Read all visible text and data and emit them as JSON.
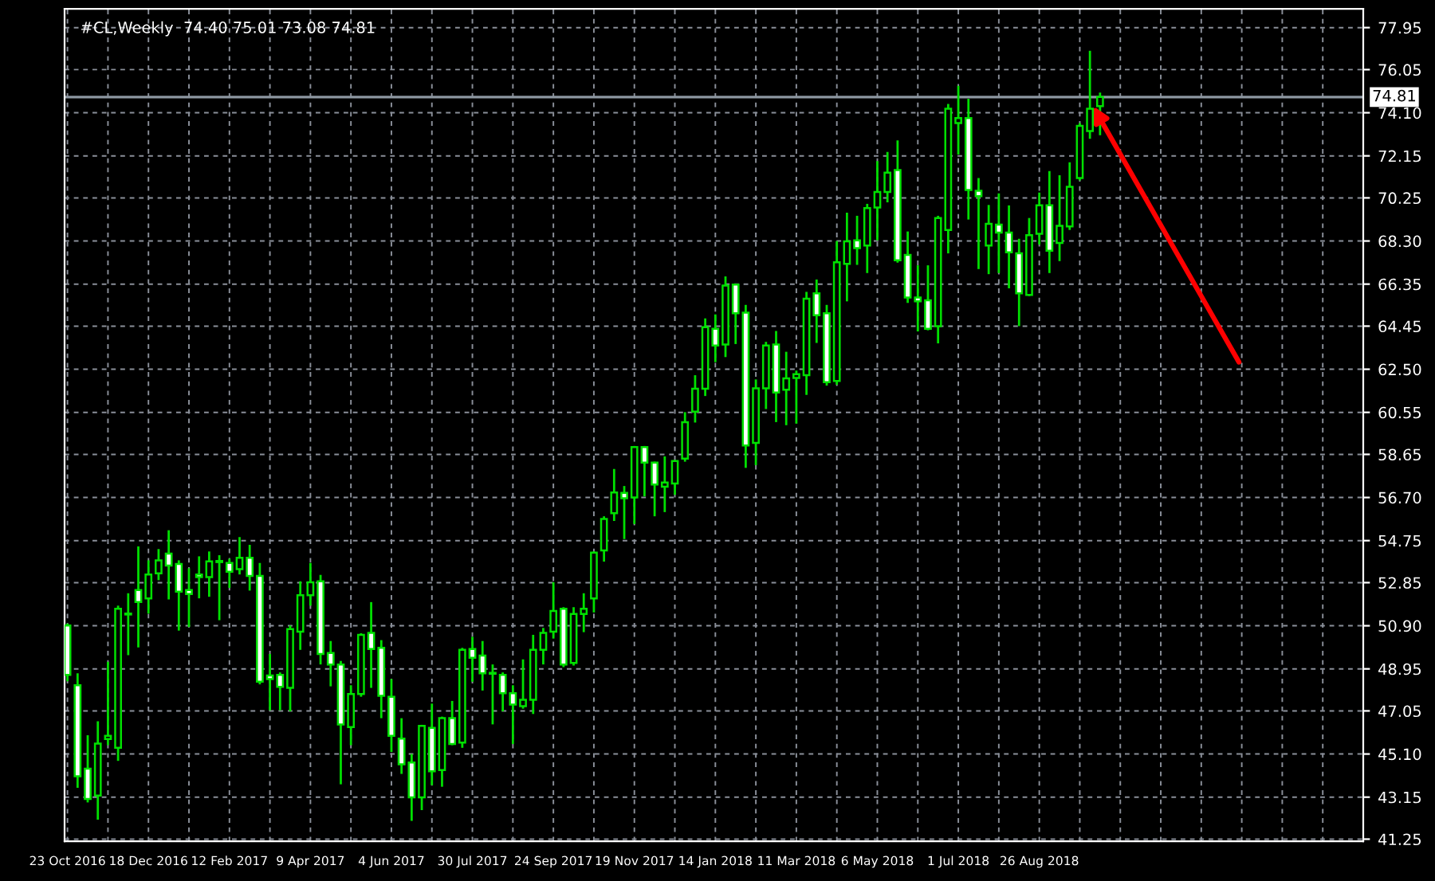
{
  "chart_data": {
    "type": "candlestick",
    "title": "#CL,Weekly  74.40 75.01 73.08 74.81",
    "x": [
      "2016-10-23",
      "2016-10-30",
      "2016-11-06",
      "2016-11-13",
      "2016-11-20",
      "2016-11-27",
      "2016-12-04",
      "2016-12-11",
      "2016-12-18",
      "2016-12-25",
      "2017-01-01",
      "2017-01-08",
      "2017-01-15",
      "2017-01-22",
      "2017-01-29",
      "2017-02-05",
      "2017-02-12",
      "2017-02-19",
      "2017-02-26",
      "2017-03-05",
      "2017-03-12",
      "2017-03-19",
      "2017-03-26",
      "2017-04-02",
      "2017-04-09",
      "2017-04-16",
      "2017-04-23",
      "2017-04-30",
      "2017-05-07",
      "2017-05-14",
      "2017-05-21",
      "2017-05-28",
      "2017-06-04",
      "2017-06-11",
      "2017-06-18",
      "2017-06-25",
      "2017-07-02",
      "2017-07-09",
      "2017-07-16",
      "2017-07-23",
      "2017-07-30",
      "2017-08-06",
      "2017-08-13",
      "2017-08-20",
      "2017-08-27",
      "2017-09-03",
      "2017-09-10",
      "2017-09-17",
      "2017-09-24",
      "2017-10-01",
      "2017-10-08",
      "2017-10-15",
      "2017-10-22",
      "2017-10-29",
      "2017-11-05",
      "2017-11-12",
      "2017-11-19",
      "2017-11-26",
      "2017-12-03",
      "2017-12-10",
      "2017-12-17",
      "2017-12-24",
      "2017-12-31",
      "2018-01-07",
      "2018-01-14",
      "2018-01-21",
      "2018-01-28",
      "2018-02-04",
      "2018-02-11",
      "2018-02-18",
      "2018-02-25",
      "2018-03-04",
      "2018-03-11",
      "2018-03-18",
      "2018-03-25",
      "2018-04-01",
      "2018-04-08",
      "2018-04-15",
      "2018-04-22",
      "2018-04-29",
      "2018-05-06",
      "2018-05-13",
      "2018-05-20",
      "2018-05-27",
      "2018-06-03",
      "2018-06-10",
      "2018-06-17",
      "2018-06-24",
      "2018-07-01",
      "2018-07-08",
      "2018-07-15",
      "2018-07-22",
      "2018-07-29",
      "2018-08-05",
      "2018-08-12",
      "2018-08-19",
      "2018-08-26",
      "2018-09-02",
      "2018-09-09",
      "2018-09-16",
      "2018-09-23",
      "2018-09-30",
      "2018-10-07"
    ],
    "ohlc": [
      [
        50.91,
        51.0,
        48.39,
        48.68
      ],
      [
        48.21,
        48.75,
        43.57,
        44.09
      ],
      [
        44.44,
        45.95,
        42.91,
        43.07
      ],
      [
        43.22,
        46.58,
        42.13,
        45.57
      ],
      [
        45.78,
        49.27,
        45.5,
        45.92
      ],
      [
        45.38,
        51.81,
        44.79,
        51.67
      ],
      [
        51.41,
        52.37,
        49.57,
        51.45
      ],
      [
        52.51,
        54.49,
        49.92,
        51.97
      ],
      [
        52.14,
        53.86,
        51.45,
        53.22
      ],
      [
        53.27,
        54.37,
        52.96,
        53.86
      ],
      [
        54.16,
        55.22,
        52.09,
        53.62
      ],
      [
        53.69,
        53.86,
        50.68,
        52.44
      ],
      [
        52.51,
        53.5,
        50.84,
        52.33
      ],
      [
        53.22,
        54.04,
        52.14,
        53.1
      ],
      [
        53.1,
        54.26,
        52.21,
        53.81
      ],
      [
        53.78,
        54.09,
        51.15,
        53.83
      ],
      [
        53.74,
        53.93,
        52.61,
        53.34
      ],
      [
        53.46,
        54.91,
        53.22,
        53.97
      ],
      [
        53.97,
        54.56,
        52.49,
        53.15
      ],
      [
        53.15,
        53.74,
        48.25,
        48.37
      ],
      [
        48.65,
        49.62,
        47.08,
        48.49
      ],
      [
        48.68,
        48.79,
        47.08,
        48.14
      ],
      [
        48.09,
        50.91,
        47.03,
        50.75
      ],
      [
        50.63,
        52.91,
        49.81,
        52.28
      ],
      [
        52.28,
        53.74,
        51.81,
        52.87
      ],
      [
        52.91,
        53.2,
        49.15,
        49.62
      ],
      [
        49.67,
        50.21,
        48.16,
        49.15
      ],
      [
        49.15,
        49.31,
        43.73,
        46.44
      ],
      [
        46.32,
        48.21,
        45.5,
        47.81
      ],
      [
        47.81,
        50.56,
        47.69,
        50.49
      ],
      [
        50.58,
        51.97,
        48.09,
        49.85
      ],
      [
        49.9,
        50.25,
        46.72,
        47.73
      ],
      [
        47.69,
        48.49,
        45.19,
        45.92
      ],
      [
        45.8,
        46.72,
        44.2,
        44.63
      ],
      [
        44.72,
        45.1,
        42.08,
        43.14
      ],
      [
        43.14,
        46.42,
        42.56,
        46.37
      ],
      [
        46.28,
        47.38,
        43.69,
        44.32
      ],
      [
        44.37,
        46.79,
        43.62,
        46.72
      ],
      [
        46.72,
        47.5,
        45.5,
        45.55
      ],
      [
        45.62,
        49.9,
        45.38,
        49.81
      ],
      [
        49.85,
        50.4,
        48.37,
        49.45
      ],
      [
        49.55,
        50.21,
        47.97,
        48.75
      ],
      [
        48.77,
        49.15,
        46.44,
        48.73
      ],
      [
        48.68,
        48.79,
        47.03,
        47.85
      ],
      [
        47.85,
        48.21,
        45.55,
        47.34
      ],
      [
        47.26,
        49.38,
        47.15,
        47.55
      ],
      [
        47.55,
        50.49,
        46.91,
        49.81
      ],
      [
        49.81,
        50.8,
        49.15,
        50.58
      ],
      [
        50.63,
        52.87,
        50.32,
        51.57
      ],
      [
        51.67,
        51.74,
        49.03,
        49.15
      ],
      [
        49.22,
        51.74,
        49.1,
        51.43
      ],
      [
        51.43,
        52.37,
        50.61,
        51.67
      ],
      [
        52.14,
        54.26,
        51.5,
        54.21
      ],
      [
        54.31,
        55.85,
        53.8,
        55.73
      ],
      [
        55.99,
        57.99,
        55.64,
        56.93
      ],
      [
        56.91,
        57.22,
        54.82,
        56.67
      ],
      [
        56.7,
        59.03,
        55.5,
        58.98
      ],
      [
        58.98,
        59.03,
        56.75,
        58.28
      ],
      [
        58.28,
        58.32,
        55.85,
        57.29
      ],
      [
        57.19,
        58.56,
        56.04,
        57.38
      ],
      [
        57.33,
        58.39,
        56.82,
        58.35
      ],
      [
        58.46,
        60.56,
        58.32,
        60.11
      ],
      [
        60.58,
        62.23,
        60.09,
        61.62
      ],
      [
        61.62,
        64.8,
        61.29,
        64.4
      ],
      [
        64.33,
        64.98,
        62.82,
        63.57
      ],
      [
        63.62,
        66.7,
        63.05,
        66.28
      ],
      [
        66.33,
        66.37,
        63.64,
        65.03
      ],
      [
        65.06,
        65.41,
        58.04,
        59.05
      ],
      [
        59.17,
        62.04,
        58.16,
        61.64
      ],
      [
        61.64,
        63.74,
        60.7,
        63.57
      ],
      [
        63.62,
        64.23,
        60.11,
        61.45
      ],
      [
        61.57,
        63.29,
        59.97,
        62.09
      ],
      [
        62.11,
        62.44,
        60.04,
        62.28
      ],
      [
        62.23,
        66.0,
        61.34,
        65.69
      ],
      [
        65.93,
        66.56,
        63.69,
        64.94
      ],
      [
        65.03,
        65.41,
        61.76,
        61.92
      ],
      [
        61.97,
        68.3,
        61.8,
        67.34
      ],
      [
        67.27,
        69.58,
        65.57,
        68.28
      ],
      [
        68.33,
        69.44,
        67.22,
        67.98
      ],
      [
        68.09,
        69.98,
        66.85,
        69.79
      ],
      [
        69.81,
        71.91,
        68.33,
        70.52
      ],
      [
        70.52,
        72.33,
        70.05,
        71.39
      ],
      [
        71.51,
        72.85,
        67.32,
        67.43
      ],
      [
        67.67,
        68.73,
        65.5,
        65.74
      ],
      [
        65.74,
        67.2,
        64.21,
        65.57
      ],
      [
        65.62,
        67.2,
        64.26,
        64.33
      ],
      [
        64.45,
        69.44,
        63.67,
        69.34
      ],
      [
        68.8,
        74.5,
        67.74,
        74.28
      ],
      [
        73.63,
        75.32,
        72.21,
        73.86
      ],
      [
        73.86,
        74.73,
        69.27,
        70.61
      ],
      [
        70.57,
        71.15,
        67.03,
        70.33
      ],
      [
        68.09,
        69.93,
        66.8,
        69.08
      ],
      [
        69.04,
        70.45,
        66.85,
        68.68
      ],
      [
        68.68,
        69.91,
        66.16,
        67.79
      ],
      [
        67.74,
        68.4,
        64.45,
        65.93
      ],
      [
        65.86,
        69.34,
        65.81,
        68.56
      ],
      [
        68.63,
        70.49,
        68.14,
        69.91
      ],
      [
        69.91,
        71.46,
        66.85,
        67.86
      ],
      [
        68.21,
        71.27,
        67.39,
        68.99
      ],
      [
        68.96,
        71.86,
        68.8,
        70.75
      ],
      [
        71.15,
        73.63,
        71.04,
        73.51
      ],
      [
        73.27,
        76.9,
        72.92,
        74.28
      ],
      [
        74.4,
        75.01,
        73.08,
        74.81
      ]
    ],
    "xlim": [
      "2016-10-21",
      "2019-04-07"
    ],
    "xticks": [
      {
        "value": "2016-10-23",
        "label": "23 Oct 2016"
      },
      {
        "value": "2016-11-20",
        "label": null
      },
      {
        "value": "2016-12-18",
        "label": "18 Dec 2016"
      },
      {
        "value": "2017-01-15",
        "label": null
      },
      {
        "value": "2017-02-12",
        "label": "12 Feb 2017"
      },
      {
        "value": "2017-03-12",
        "label": null
      },
      {
        "value": "2017-04-09",
        "label": "9 Apr 2017"
      },
      {
        "value": "2017-05-07",
        "label": null
      },
      {
        "value": "2017-06-04",
        "label": "4 Jun 2017"
      },
      {
        "value": "2017-07-02",
        "label": null
      },
      {
        "value": "2017-07-30",
        "label": "30 Jul 2017"
      },
      {
        "value": "2017-08-27",
        "label": null
      },
      {
        "value": "2017-09-24",
        "label": "24 Sep 2017"
      },
      {
        "value": "2017-10-22",
        "label": null
      },
      {
        "value": "2017-11-19",
        "label": "19 Nov 2017"
      },
      {
        "value": "2017-12-17",
        "label": null
      },
      {
        "value": "2018-01-14",
        "label": "14 Jan 2018"
      },
      {
        "value": "2018-02-11",
        "label": null
      },
      {
        "value": "2018-03-11",
        "label": "11 Mar 2018"
      },
      {
        "value": "2018-04-08",
        "label": null
      },
      {
        "value": "2018-05-06",
        "label": "6 May 2018"
      },
      {
        "value": "2018-06-03",
        "label": null
      },
      {
        "value": "2018-07-01",
        "label": "1 Jul 2018"
      },
      {
        "value": "2018-07-29",
        "label": null
      },
      {
        "value": "2018-08-26",
        "label": "26 Aug 2018"
      },
      {
        "value": "2018-09-23",
        "label": null
      },
      {
        "value": "2018-10-21",
        "label": null
      },
      {
        "value": "2018-11-18",
        "label": null
      },
      {
        "value": "2018-12-16",
        "label": null
      },
      {
        "value": "2019-01-13",
        "label": null
      },
      {
        "value": "2019-02-10",
        "label": null
      },
      {
        "value": "2019-03-10",
        "label": null
      }
    ],
    "ylim": [
      41.15,
      78.8
    ],
    "yticks": [
      {
        "value": 41.25,
        "label": "41.25"
      },
      {
        "value": 43.15,
        "label": "43.15"
      },
      {
        "value": 45.1,
        "label": "45.10"
      },
      {
        "value": 47.05,
        "label": "47.05"
      },
      {
        "value": 48.95,
        "label": "48.95"
      },
      {
        "value": 50.9,
        "label": "50.90"
      },
      {
        "value": 52.85,
        "label": "52.85"
      },
      {
        "value": 54.75,
        "label": "54.75"
      },
      {
        "value": 56.7,
        "label": "56.70"
      },
      {
        "value": 58.65,
        "label": "58.65"
      },
      {
        "value": 60.55,
        "label": "60.55"
      },
      {
        "value": 62.5,
        "label": "62.50"
      },
      {
        "value": 64.45,
        "label": "64.45"
      },
      {
        "value": 66.35,
        "label": "66.35"
      },
      {
        "value": 68.3,
        "label": "68.30"
      },
      {
        "value": 70.25,
        "label": "70.25"
      },
      {
        "value": 72.15,
        "label": "72.15"
      },
      {
        "value": 74.1,
        "label": "74.10"
      },
      {
        "value": 76.05,
        "label": "76.05"
      },
      {
        "value": 77.95,
        "label": "77.95"
      }
    ],
    "ref_lines": [
      {
        "axis": "y",
        "value": 74.81,
        "label": "74.81",
        "color": "#8c96a0"
      }
    ],
    "grid": true
  }
}
